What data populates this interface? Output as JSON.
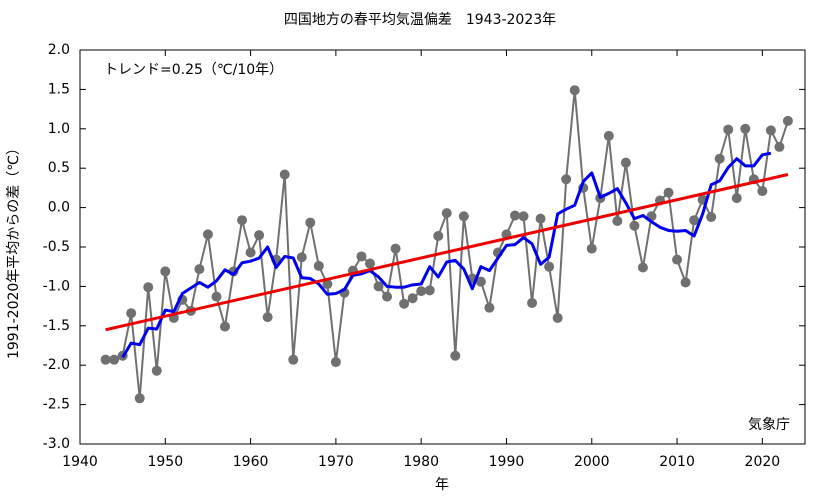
{
  "chart_data": {
    "type": "line",
    "title": "四国地方の春平均気温偏差　1943-2023年",
    "xlabel": "年",
    "ylabel": "1991-2020年平均からの差（℃）",
    "annotations": [
      "トレンド=0.25（℃/10年）",
      "気象庁"
    ],
    "xlim": [
      1940,
      2025
    ],
    "ylim": [
      -3.0,
      2.0
    ],
    "xticks": [
      1940,
      1950,
      1960,
      1970,
      1980,
      1990,
      2000,
      2010,
      2020
    ],
    "yticks": [
      {
        "value": -3.0,
        "label": "-3.0"
      },
      {
        "value": -2.5,
        "label": "-2.5"
      },
      {
        "value": -2.0,
        "label": "-2.0"
      },
      {
        "value": -1.5,
        "label": "-1.5"
      },
      {
        "value": -1.0,
        "label": "-1.0"
      },
      {
        "value": -0.5,
        "label": "-0.5"
      },
      {
        "value": 0.0,
        "label": "0.0"
      },
      {
        "value": 0.5,
        "label": "0.5"
      },
      {
        "value": 1.0,
        "label": "1.0"
      },
      {
        "value": 1.5,
        "label": "1.5"
      },
      {
        "value": 2.0,
        "label": "2.0"
      }
    ],
    "series": [
      {
        "color": "#707070",
        "marker": true,
        "width": 2,
        "x": [
          1943,
          1944,
          1945,
          1946,
          1947,
          1948,
          1949,
          1950,
          1951,
          1952,
          1953,
          1954,
          1955,
          1956,
          1957,
          1958,
          1959,
          1960,
          1961,
          1962,
          1963,
          1964,
          1965,
          1966,
          1967,
          1968,
          1969,
          1970,
          1971,
          1972,
          1973,
          1974,
          1975,
          1976,
          1977,
          1978,
          1979,
          1980,
          1981,
          1982,
          1983,
          1984,
          1985,
          1986,
          1987,
          1988,
          1989,
          1990,
          1991,
          1992,
          1993,
          1994,
          1995,
          1996,
          1997,
          1998,
          1999,
          2000,
          2001,
          2002,
          2003,
          2004,
          2005,
          2006,
          2007,
          2008,
          2009,
          2010,
          2011,
          2012,
          2013,
          2014,
          2015,
          2016,
          2017,
          2018,
          2019,
          2020,
          2021,
          2022,
          2023
        ],
        "values": [
          -1.93,
          -1.93,
          -1.88,
          -1.34,
          -2.42,
          -1.01,
          -2.07,
          -0.81,
          -1.4,
          -1.17,
          -1.31,
          -0.78,
          -0.34,
          -1.13,
          -1.51,
          -0.81,
          -0.16,
          -0.57,
          -0.35,
          -1.39,
          -0.66,
          0.42,
          -1.93,
          -0.63,
          -0.19,
          -0.74,
          -0.97,
          -1.96,
          -1.08,
          -0.8,
          -0.62,
          -0.71,
          -1.0,
          -1.13,
          -0.52,
          -1.22,
          -1.15,
          -1.06,
          -1.05,
          -0.36,
          -0.07,
          -1.88,
          -0.11,
          -0.9,
          -0.94,
          -1.27,
          -0.57,
          -0.34,
          -0.1,
          -0.11,
          -1.21,
          -0.14,
          -0.75,
          -1.4,
          0.36,
          1.49,
          0.25,
          -0.52,
          0.12,
          0.91,
          -0.17,
          0.57,
          -0.23,
          -0.76,
          -0.11,
          0.09,
          0.19,
          -0.66,
          -0.95,
          -0.16,
          0.1,
          -0.12,
          0.62,
          0.99,
          0.12,
          1.0,
          0.36,
          0.21,
          0.98,
          0.77,
          1.1
        ]
      },
      {
        "color": "#0000ee",
        "marker": false,
        "width": 3,
        "x": [
          1945,
          1946,
          1947,
          1948,
          1949,
          1950,
          1951,
          1952,
          1953,
          1954,
          1955,
          1956,
          1957,
          1958,
          1959,
          1960,
          1961,
          1962,
          1963,
          1964,
          1965,
          1966,
          1967,
          1968,
          1969,
          1970,
          1971,
          1972,
          1973,
          1974,
          1975,
          1976,
          1977,
          1978,
          1979,
          1980,
          1981,
          1982,
          1983,
          1984,
          1985,
          1986,
          1987,
          1988,
          1989,
          1990,
          1991,
          1992,
          1993,
          1994,
          1995,
          1996,
          1997,
          1998,
          1999,
          2000,
          2001,
          2002,
          2003,
          2004,
          2005,
          2006,
          2007,
          2008,
          2009,
          2010,
          2011,
          2012,
          2013,
          2014,
          2015,
          2016,
          2017,
          2018,
          2019,
          2020,
          2021
        ],
        "values": [
          -1.9,
          -1.72,
          -1.74,
          -1.53,
          -1.54,
          -1.3,
          -1.32,
          -1.09,
          -1.02,
          -0.95,
          -1.01,
          -0.93,
          -0.79,
          -0.85,
          -0.7,
          -0.68,
          -0.64,
          -0.5,
          -0.76,
          -0.62,
          -0.64,
          -0.89,
          -0.9,
          -0.97,
          -1.1,
          -1.09,
          -1.04,
          -0.86,
          -0.84,
          -0.8,
          -0.88,
          -1.0,
          -1.01,
          -1.01,
          -0.98,
          -0.97,
          -0.75,
          -0.88,
          -0.69,
          -0.67,
          -0.78,
          -1.03,
          -0.75,
          -0.8,
          -0.64,
          -0.48,
          -0.47,
          -0.38,
          -0.46,
          -0.72,
          -0.63,
          -0.08,
          -0.02,
          0.03,
          0.33,
          0.44,
          0.13,
          0.18,
          0.24,
          0.06,
          -0.14,
          -0.1,
          -0.18,
          -0.25,
          -0.29,
          -0.3,
          -0.29,
          -0.36,
          -0.08,
          0.29,
          0.34,
          0.51,
          0.62,
          0.53,
          0.53,
          0.67,
          0.69
        ]
      },
      {
        "color": "#ee0000",
        "marker": false,
        "width": 3,
        "x": [
          1943,
          2023
        ],
        "values": [
          -1.55,
          0.42
        ]
      }
    ]
  }
}
